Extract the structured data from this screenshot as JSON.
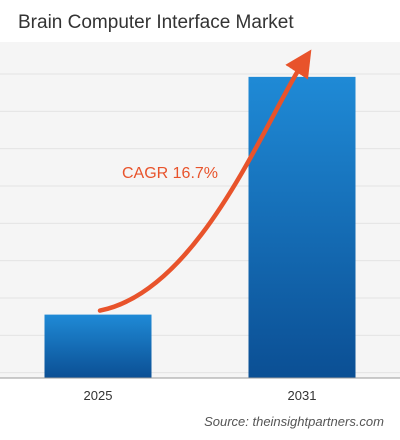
{
  "title": "Brain Computer Interface Market",
  "source": "Source: theinsightpartners.com",
  "colors": {
    "bar_top": "#1f8ad6",
    "bar_bottom": "#0b4f94",
    "arrow": "#e8532b",
    "cagr_text": "#e8532b",
    "grid": "#e3e3e3",
    "background_band": "#f5f5f5"
  },
  "chart_data": {
    "type": "bar",
    "title": "Brain Computer Interface Market",
    "categories": [
      "2025",
      "2031"
    ],
    "values": [
      1.0,
      4.75
    ],
    "ylim": [
      0,
      5.3
    ],
    "grid": true,
    "annotation": {
      "text": "CAGR 16.7%",
      "kind": "arrow",
      "from_category": "2025",
      "to_category": "2031"
    }
  }
}
